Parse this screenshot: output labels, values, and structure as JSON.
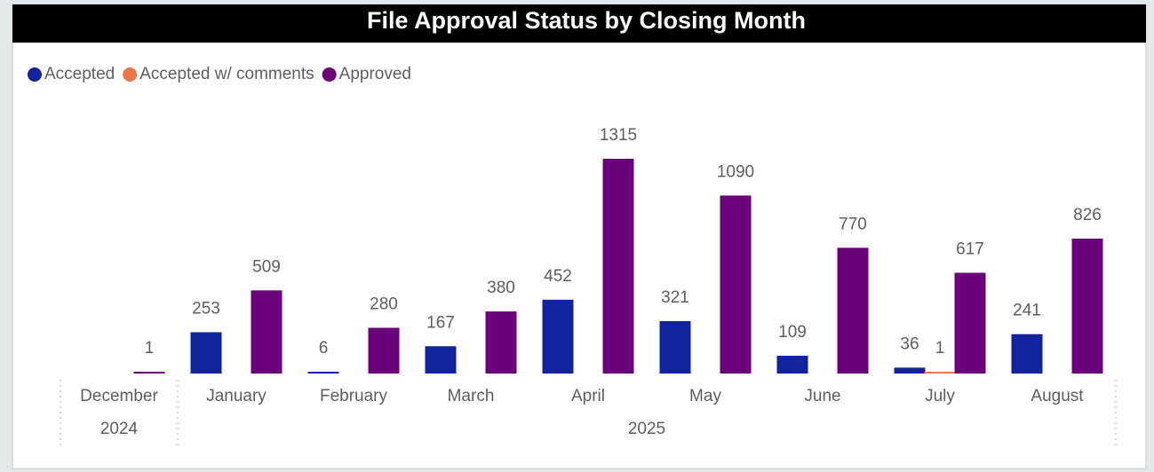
{
  "chart_data": {
    "type": "bar",
    "title": "File Approval Status by Closing Month",
    "categories": [
      "December",
      "January",
      "February",
      "March",
      "April",
      "May",
      "June",
      "July",
      "August"
    ],
    "year_groups": [
      {
        "label": "2024",
        "count": 1
      },
      {
        "label": "2025",
        "count": 8
      }
    ],
    "series": [
      {
        "name": "Accepted",
        "color": "#12239e",
        "values": [
          null,
          253,
          6,
          167,
          452,
          321,
          109,
          36,
          241
        ]
      },
      {
        "name": "Accepted w/ comments",
        "color": "#e8784a",
        "values": [
          null,
          null,
          null,
          null,
          null,
          null,
          null,
          1,
          null
        ]
      },
      {
        "name": "Approved",
        "color": "#6b007b",
        "values": [
          1,
          509,
          280,
          380,
          1315,
          1090,
          770,
          617,
          826
        ]
      }
    ],
    "legend": "top-left",
    "data_labels": true
  }
}
